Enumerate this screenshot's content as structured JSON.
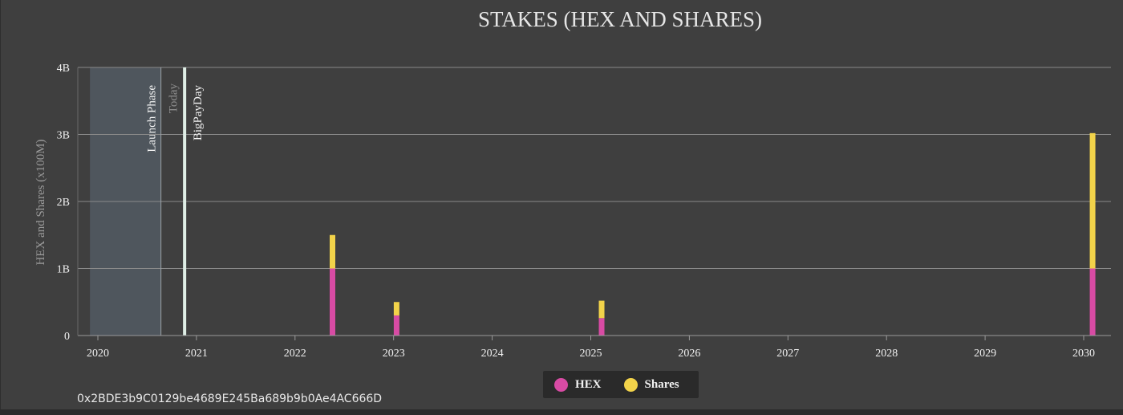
{
  "colors": {
    "hex": "#d84ba4",
    "shares": "#f2d34a",
    "launch_phase": "#4f565d",
    "today_line": "#9aa0a6",
    "bigpayday_line": "#dfeee6",
    "grid": "#8a8a8a"
  },
  "address": "0x2BDE3b9C0129be4689E245Ba689b9b0Ae4AC666D",
  "chart_data": {
    "type": "bar",
    "stacked": true,
    "title": "STAKES (HEX AND SHARES)",
    "ylabel": "HEX and Shares (x100M)",
    "xlabel": "",
    "xlim": [
      2020,
      2030.4
    ],
    "ylim": [
      0,
      4
    ],
    "y_ticks": [
      {
        "value": 0,
        "label": "0"
      },
      {
        "value": 1,
        "label": "1B"
      },
      {
        "value": 2,
        "label": "2B"
      },
      {
        "value": 3,
        "label": "3B"
      },
      {
        "value": 4,
        "label": "4B"
      }
    ],
    "x_ticks": [
      {
        "value": 2020,
        "label": "2020"
      },
      {
        "value": 2021,
        "label": "2021"
      },
      {
        "value": 2022,
        "label": "2022"
      },
      {
        "value": 2023,
        "label": "2023"
      },
      {
        "value": 2024,
        "label": "2024"
      },
      {
        "value": 2025,
        "label": "2025"
      },
      {
        "value": 2026,
        "label": "2026"
      },
      {
        "value": 2027,
        "label": "2027"
      },
      {
        "value": 2028,
        "label": "2028"
      },
      {
        "value": 2029,
        "label": "2029"
      },
      {
        "value": 2030,
        "label": "2030"
      }
    ],
    "grid": true,
    "legend_position": "bottom-center",
    "series": [
      {
        "name": "HEX",
        "values": [
          1.0,
          0.3,
          0.26,
          1.0
        ]
      },
      {
        "name": "Shares",
        "values": [
          0.5,
          0.2,
          0.26,
          2.02
        ]
      }
    ],
    "stake_dates": [
      2022.38,
      2023.03,
      2025.11,
      2030.09
    ],
    "regions": [
      {
        "label": "Launch Phase",
        "start": 2019.92,
        "end": 2020.64
      }
    ],
    "markers": [
      {
        "label": "Today",
        "x": 2020.64
      },
      {
        "label": "BigPayDay",
        "x": 2020.88
      }
    ]
  }
}
